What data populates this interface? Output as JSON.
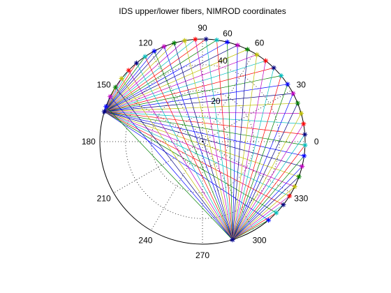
{
  "chart_data": {
    "type": "polar",
    "title": "IDS upper/lower fibers, NIMROD coordinates",
    "angle_unit": "degrees",
    "rmax": 50,
    "grid": true,
    "theta_labels": [
      "0",
      "30",
      "60",
      "90",
      "120",
      "150",
      "180",
      "210",
      "240",
      "270",
      "300",
      "330"
    ],
    "radial_labels": [
      "20",
      "40",
      "60"
    ],
    "radial_label_angle_deg": 80,
    "fan_origins": [
      {
        "angle_deg": 163,
        "r": 50
      },
      {
        "angle_deg": 287,
        "r": 50
      }
    ],
    "fiber_endpoints": {
      "r": 50,
      "angles_deg": [
        -50,
        -44,
        -38,
        -32,
        -26,
        -20,
        -14,
        -8,
        -2,
        4,
        10,
        16,
        22,
        28,
        34,
        40,
        46,
        52,
        58,
        64,
        70,
        76,
        82,
        88,
        94,
        100,
        106,
        112,
        118,
        124,
        130,
        136,
        142,
        148,
        154,
        160
      ]
    },
    "endpoint_marker": "*",
    "series_colors": [
      "#0000ff",
      "#008000",
      "#ff0000",
      "#00bfbf",
      "#bf00bf",
      "#bfbf00",
      "#000080"
    ]
  }
}
